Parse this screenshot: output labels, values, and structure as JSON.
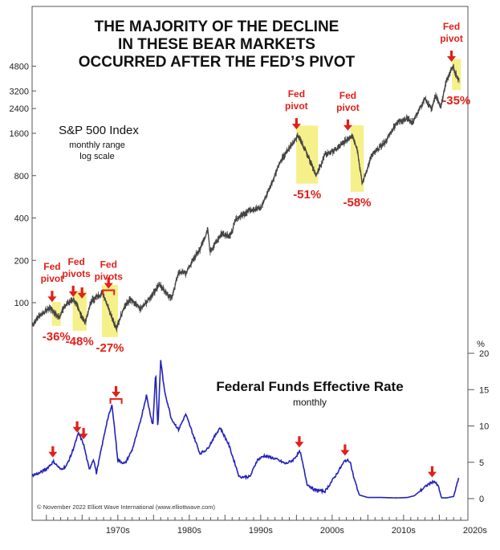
{
  "chart_data": [
    {
      "type": "line",
      "title": [
        "THE MAJORITY OF THE DECLINE",
        "IN THESE BEAR MARKETS",
        "OCCURRED AFTER THE FED’S PIVOT"
      ],
      "panel_label": "S&P 500 Index",
      "panel_sublabel_1": "monthly range",
      "panel_sublabel_2": "log scale",
      "y_scale": "log",
      "y_ticks": [
        100,
        200,
        400,
        800,
        1600,
        2400,
        3200,
        4800
      ],
      "series": [
        {
          "color": "#444444",
          "x": [
            1963.0,
            1964.0,
            1965.5,
            1966.8,
            1967.5,
            1968.8,
            1970.4,
            1971.3,
            1972.9,
            1974.8,
            1975.8,
            1976.7,
            1978.2,
            1979.5,
            1980.8,
            1982.5,
            1983.5,
            1984.5,
            1985.5,
            1986.5,
            1987.6,
            1987.9,
            1989.5,
            1990.8,
            1991.5,
            1993.5,
            1995.0,
            1996.5,
            1997.5,
            1998.5,
            2000.2,
            2001.5,
            2002.8,
            2004.0,
            2005.5,
            2007.8,
            2008.5,
            2009.2,
            2010.5,
            2011.5,
            2012.5,
            2014.0,
            2015.5,
            2016.2,
            2018.0,
            2018.9,
            2019.5,
            2020.2,
            2021.0,
            2021.9,
            2022.8
          ],
          "values": [
            69,
            81,
            92,
            78,
            95,
            106,
            72,
            103,
            118,
            65,
            92,
            105,
            90,
            108,
            135,
            107,
            165,
            162,
            200,
            240,
            330,
            230,
            310,
            300,
            390,
            460,
            470,
            700,
            950,
            1150,
            1550,
            1150,
            800,
            1130,
            1220,
            1560,
            1250,
            700,
            1100,
            1250,
            1400,
            1900,
            2050,
            1900,
            2800,
            2400,
            2950,
            2450,
            3800,
            4750,
            3700
          ]
        }
      ],
      "bear_markets": [
        {
          "start": 1966.0,
          "end": 1966.8,
          "drop_label": "-36%"
        },
        {
          "start": 1968.9,
          "end": 1970.4,
          "drop_label": "-48%"
        },
        {
          "start": 1973.0,
          "end": 1974.8,
          "drop_label": "-27%"
        },
        {
          "start": 2000.2,
          "end": 2002.8,
          "drop_label": "-51%"
        },
        {
          "start": 2007.8,
          "end": 2009.2,
          "drop_label": "-58%"
        },
        {
          "start": 2022.0,
          "end": 2022.8,
          "drop_label": "-35%"
        }
      ],
      "pivot_labels": [
        {
          "x": 1965.8,
          "lines": [
            "Fed",
            "pivot"
          ]
        },
        {
          "x": 1969.2,
          "lines": [
            "Fed",
            "pivots"
          ]
        },
        {
          "x": 1973.7,
          "lines": [
            "Fed",
            "pivots"
          ]
        },
        {
          "x": 2000.0,
          "lines": [
            "Fed",
            "pivot"
          ]
        },
        {
          "x": 2007.2,
          "lines": [
            "Fed",
            "pivot"
          ]
        },
        {
          "x": 2021.7,
          "lines": [
            "Fed",
            "pivot"
          ]
        }
      ]
    },
    {
      "type": "line",
      "title": "Federal Funds Effective Rate",
      "subtitle": "monthly",
      "ylabel": "%",
      "ylim": [
        0,
        20
      ],
      "y_ticks": [
        0,
        5,
        10,
        15,
        20
      ],
      "series": [
        {
          "color": "#2222bb",
          "x": [
            1963.0,
            1964.0,
            1965.0,
            1966.0,
            1967.0,
            1967.8,
            1968.5,
            1969.5,
            1970.2,
            1971.0,
            1971.6,
            1972.0,
            1973.5,
            1974.2,
            1975.0,
            1976.0,
            1977.0,
            1978.0,
            1979.0,
            1979.9,
            1980.3,
            1980.6,
            1981.0,
            1981.5,
            1982.5,
            1983.5,
            1984.5,
            1986.5,
            1987.5,
            1989.3,
            1990.5,
            1992.0,
            1993.5,
            1994.5,
            1995.5,
            1997.0,
            1998.5,
            1999.5,
            2000.5,
            2001.5,
            2002.5,
            2004.0,
            2005.5,
            2006.8,
            2007.5,
            2008.0,
            2008.8,
            2010.0,
            2012.0,
            2014.0,
            2015.5,
            2016.5,
            2017.5,
            2018.5,
            2019.3,
            2019.9,
            2020.3,
            2021.0,
            2022.0,
            2022.8
          ],
          "values": [
            3.2,
            3.5,
            4.1,
            5.1,
            4.0,
            4.5,
            6.1,
            9.0,
            7.5,
            4.0,
            5.5,
            3.5,
            10.7,
            12.9,
            5.3,
            4.8,
            6.7,
            10.0,
            14.2,
            10.0,
            17.6,
            9.5,
            19.1,
            15.0,
            11.0,
            9.5,
            11.6,
            6.2,
            6.8,
            9.8,
            7.5,
            3.0,
            3.0,
            5.3,
            5.9,
            5.5,
            4.8,
            5.3,
            6.5,
            2.0,
            1.2,
            1.0,
            3.2,
            5.25,
            5.2,
            3.0,
            0.5,
            0.15,
            0.15,
            0.1,
            0.15,
            0.4,
            1.2,
            2.0,
            2.4,
            1.6,
            0.1,
            0.1,
            0.3,
            3.1
          ]
        }
      ],
      "pivot_arrows_x": [
        1965.9,
        1969.3,
        1970.2,
        1974.3,
        1975.1,
        2000.4,
        2006.8,
        2019.0
      ]
    }
  ],
  "x_axis": {
    "ticks": [
      "1970s",
      "1980s",
      "1990s",
      "2000s",
      "2010s",
      "2020s"
    ],
    "xlim": [
      1963,
      2024
    ]
  },
  "copyright": "© November 2022 Elliott Wave International (www.elliottwave.com)"
}
